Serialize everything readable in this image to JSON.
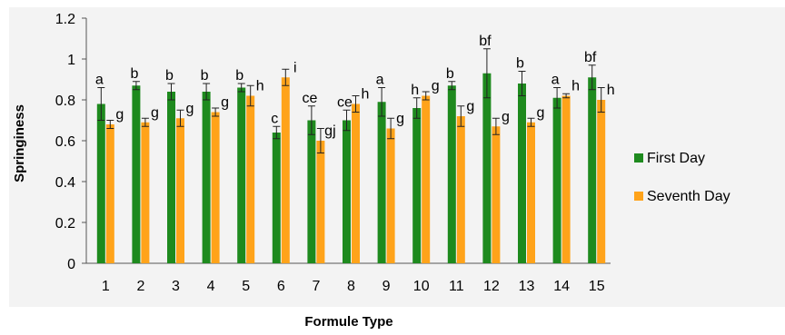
{
  "chart_data": {
    "type": "bar",
    "xlabel": "Formule Type",
    "ylabel": "Springiness",
    "ylim": [
      0,
      1.2
    ],
    "yticks": [
      "0",
      "0.2",
      "0.4",
      "0.6",
      "0.8",
      "1",
      "1.2"
    ],
    "categories": [
      "1",
      "2",
      "3",
      "4",
      "5",
      "6",
      "7",
      "8",
      "9",
      "10",
      "11",
      "12",
      "13",
      "14",
      "15"
    ],
    "legend_position": "right",
    "grid": false,
    "series": [
      {
        "name": "First Day",
        "color": "#1e8a1e",
        "values": [
          0.78,
          0.87,
          0.84,
          0.84,
          0.86,
          0.64,
          0.7,
          0.7,
          0.79,
          0.76,
          0.87,
          0.93,
          0.88,
          0.81,
          0.91
        ],
        "errors": [
          0.08,
          0.02,
          0.04,
          0.04,
          0.02,
          0.03,
          0.07,
          0.05,
          0.07,
          0.05,
          0.02,
          0.12,
          0.06,
          0.05,
          0.06
        ],
        "labels": [
          "a",
          "b",
          "b",
          "b",
          "b",
          "c",
          "ce",
          "ce",
          "a",
          "h",
          "b",
          "bf",
          "b",
          "a",
          "bf"
        ]
      },
      {
        "name": "Seventh Day",
        "color": "#ffa31a",
        "values": [
          0.68,
          0.69,
          0.71,
          0.74,
          0.82,
          0.91,
          0.6,
          0.78,
          0.66,
          0.82,
          0.72,
          0.67,
          0.69,
          0.82,
          0.8
        ],
        "errors": [
          0.02,
          0.02,
          0.04,
          0.02,
          0.05,
          0.04,
          0.06,
          0.04,
          0.05,
          0.02,
          0.05,
          0.04,
          0.02,
          0.01,
          0.06
        ],
        "labels": [
          "g",
          "g",
          "g",
          "g",
          "h",
          "i",
          "gj",
          "h",
          "g",
          "g",
          "g",
          "g",
          "g",
          "h",
          "h"
        ]
      }
    ]
  }
}
